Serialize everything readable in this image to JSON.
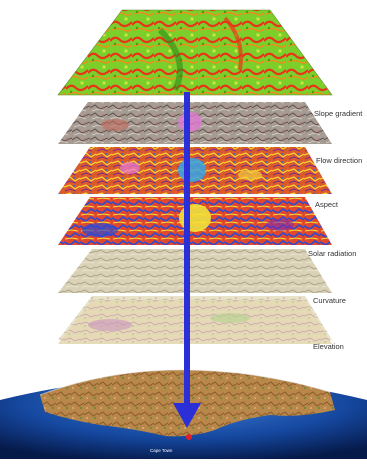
{
  "layers": [
    {
      "id": "classified",
      "label": ""
    },
    {
      "id": "slope",
      "label": "Slope gradient"
    },
    {
      "id": "flow",
      "label": "Flow direction"
    },
    {
      "id": "aspect",
      "label": "Aspect"
    },
    {
      "id": "solar",
      "label": "Solar radiation"
    },
    {
      "id": "curvature",
      "label": "Curvature"
    },
    {
      "id": "elevation",
      "label": "Elevation"
    }
  ],
  "globe": {
    "location_label": "Cape Town"
  },
  "colors": {
    "arrow": "#2b2fd8",
    "marker": "#e0202a"
  }
}
